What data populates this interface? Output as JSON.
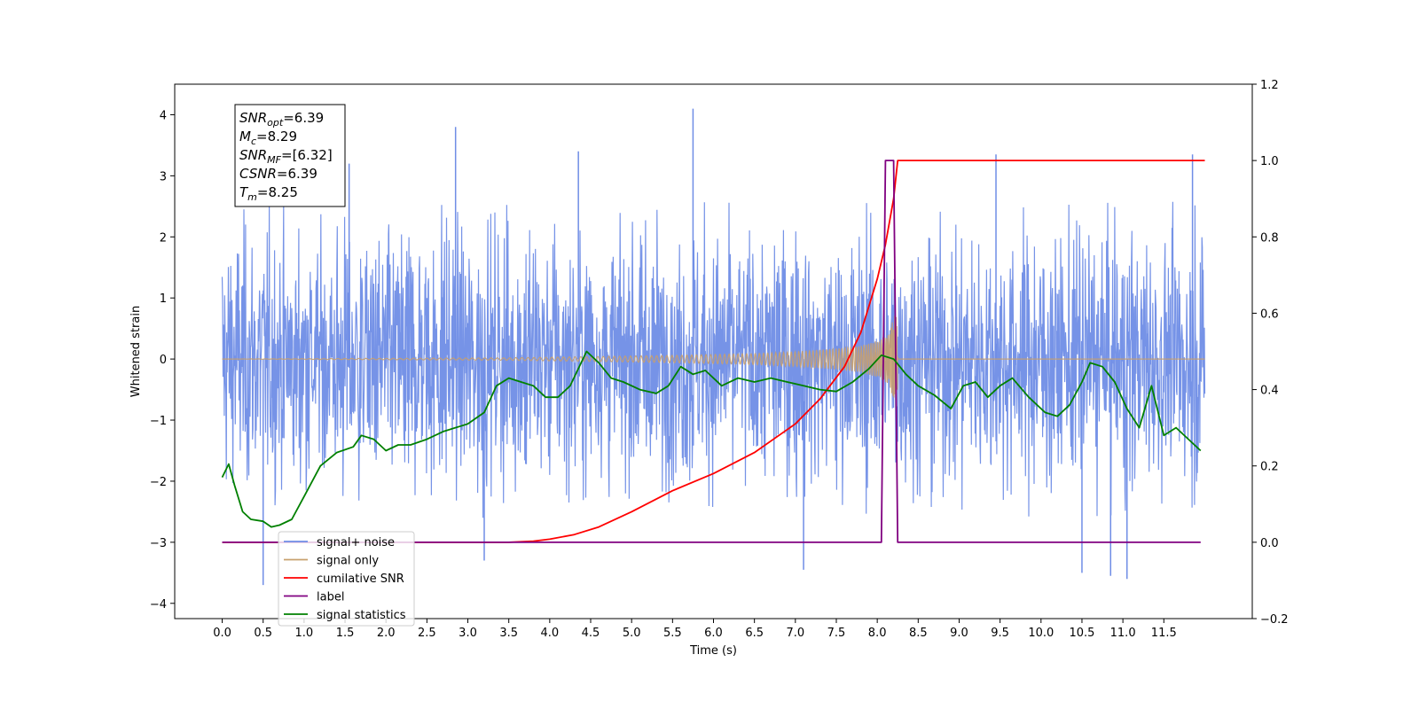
{
  "chart_data": {
    "type": "line",
    "xlabel": "Time (s)",
    "ylabel": "Whitened strain",
    "xlim": [
      -0.58,
      12.58
    ],
    "ylim": [
      -4.25,
      4.5
    ],
    "y2lim": [
      -0.2,
      1.2
    ],
    "x_ticks": [
      0.0,
      0.5,
      1.0,
      1.5,
      2.0,
      2.5,
      3.0,
      3.5,
      4.0,
      4.5,
      5.0,
      5.5,
      6.0,
      6.5,
      7.0,
      7.5,
      8.0,
      8.5,
      9.0,
      9.5,
      10.0,
      10.5,
      11.0,
      11.5
    ],
    "x_tick_labels": [
      "0.0",
      "0.5",
      "1.0",
      "1.5",
      "2.0",
      "2.5",
      "3.0",
      "3.5",
      "4.0",
      "4.5",
      "5.0",
      "5.5",
      "6.0",
      "6.5",
      "7.0",
      "7.5",
      "8.0",
      "8.5",
      "9.0",
      "9.5",
      "10.0",
      "10.5",
      "11.0",
      "11.5"
    ],
    "y_ticks": [
      4,
      3,
      2,
      1,
      0,
      -1,
      -2,
      -3,
      -4
    ],
    "y_tick_labels": [
      "4",
      "3",
      "2",
      "1",
      "0",
      "−1",
      "−2",
      "−3",
      "−4"
    ],
    "y2_ticks": [
      1.2,
      1.0,
      0.8,
      0.6,
      0.4,
      0.2,
      0.0,
      -0.2
    ],
    "y2_tick_labels": [
      "1.2",
      "1.0",
      "0.8",
      "0.6",
      "0.4",
      "0.2",
      "0.0",
      "−0.2"
    ],
    "grid": false,
    "legend_position": "lower-left",
    "annotation": [
      {
        "name": "SNR",
        "sub": "opt",
        "value": "=6.39"
      },
      {
        "name": "M",
        "sub": "c",
        "value": "=8.29"
      },
      {
        "name": "SNR",
        "sub": "MF",
        "value": "=[6.32]"
      },
      {
        "name": "CSNR",
        "sub": "",
        "value": "=6.39"
      },
      {
        "name": "T",
        "sub": "m",
        "value": "=8.25"
      }
    ],
    "series": [
      {
        "name": "signal+ noise",
        "color": "#6f8de6",
        "axis": "left",
        "kind": "noise",
        "x_range": [
          0.0,
          12.0
        ],
        "typical_range": [
          -2.6,
          2.6
        ],
        "extremes": [
          {
            "x": 0.5,
            "y": -3.7
          },
          {
            "x": 2.85,
            "y": 3.8
          },
          {
            "x": 3.2,
            "y": -3.3
          },
          {
            "x": 5.75,
            "y": 4.1
          },
          {
            "x": 7.1,
            "y": -3.45
          },
          {
            "x": 9.45,
            "y": 3.35
          },
          {
            "x": 10.5,
            "y": -3.5
          },
          {
            "x": 10.85,
            "y": -3.55
          },
          {
            "x": 11.05,
            "y": -3.6
          },
          {
            "x": 11.85,
            "y": 3.35
          },
          {
            "x": 1.55,
            "y": 3.2
          },
          {
            "x": 4.35,
            "y": 3.4
          }
        ]
      },
      {
        "name": "signal only",
        "color": "#c8a06e",
        "axis": "left",
        "kind": "chirp",
        "x": [
          0.0,
          3.5,
          4.5,
          5.5,
          6.5,
          7.0,
          7.5,
          7.8,
          8.0,
          8.15,
          8.24,
          8.25,
          12.0
        ],
        "envelope": [
          0.0,
          0.02,
          0.04,
          0.06,
          0.09,
          0.12,
          0.17,
          0.22,
          0.3,
          0.42,
          0.9,
          0.0,
          0.0
        ]
      },
      {
        "name": "cumilative SNR",
        "color": "#ff0000",
        "axis": "right",
        "x": [
          0.0,
          3.0,
          3.5,
          3.8,
          4.0,
          4.3,
          4.6,
          5.0,
          5.5,
          6.0,
          6.5,
          7.0,
          7.3,
          7.6,
          7.8,
          8.0,
          8.1,
          8.2,
          8.25,
          12.0
        ],
        "y": [
          0.0,
          0.0,
          0.0,
          0.003,
          0.008,
          0.02,
          0.04,
          0.08,
          0.135,
          0.18,
          0.235,
          0.31,
          0.375,
          0.46,
          0.55,
          0.69,
          0.78,
          0.9,
          1.0,
          1.0
        ]
      },
      {
        "name": "label",
        "color": "#800080",
        "axis": "right",
        "x": [
          0.0,
          8.05,
          8.1,
          8.2,
          8.25,
          11.95
        ],
        "y": [
          0.0,
          0.0,
          1.0,
          1.0,
          0.0,
          0.0
        ]
      },
      {
        "name": "signal statistics",
        "color": "#008000",
        "axis": "right",
        "x": [
          0.0,
          0.08,
          0.15,
          0.25,
          0.35,
          0.5,
          0.6,
          0.7,
          0.85,
          1.0,
          1.2,
          1.4,
          1.6,
          1.7,
          1.85,
          2.0,
          2.15,
          2.3,
          2.5,
          2.7,
          3.0,
          3.2,
          3.35,
          3.5,
          3.65,
          3.8,
          3.95,
          4.1,
          4.25,
          4.45,
          4.6,
          4.75,
          4.9,
          5.1,
          5.3,
          5.45,
          5.6,
          5.75,
          5.9,
          6.1,
          6.3,
          6.5,
          6.7,
          6.9,
          7.1,
          7.3,
          7.5,
          7.7,
          7.9,
          8.05,
          8.2,
          8.35,
          8.5,
          8.7,
          8.9,
          9.05,
          9.2,
          9.35,
          9.5,
          9.65,
          9.85,
          10.05,
          10.2,
          10.35,
          10.5,
          10.6,
          10.75,
          10.9,
          11.05,
          11.2,
          11.35,
          11.5,
          11.65,
          11.8,
          11.95
        ],
        "y": [
          0.17,
          0.205,
          0.15,
          0.08,
          0.06,
          0.055,
          0.04,
          0.045,
          0.06,
          0.12,
          0.2,
          0.235,
          0.25,
          0.28,
          0.27,
          0.24,
          0.255,
          0.255,
          0.27,
          0.29,
          0.31,
          0.34,
          0.41,
          0.43,
          0.42,
          0.41,
          0.38,
          0.38,
          0.41,
          0.5,
          0.47,
          0.43,
          0.42,
          0.4,
          0.39,
          0.41,
          0.46,
          0.44,
          0.45,
          0.41,
          0.43,
          0.42,
          0.43,
          0.42,
          0.41,
          0.4,
          0.395,
          0.42,
          0.455,
          0.49,
          0.48,
          0.44,
          0.41,
          0.385,
          0.35,
          0.41,
          0.42,
          0.38,
          0.41,
          0.43,
          0.38,
          0.34,
          0.33,
          0.36,
          0.42,
          0.47,
          0.46,
          0.42,
          0.35,
          0.3,
          0.41,
          0.28,
          0.3,
          0.27,
          0.24
        ]
      }
    ]
  }
}
